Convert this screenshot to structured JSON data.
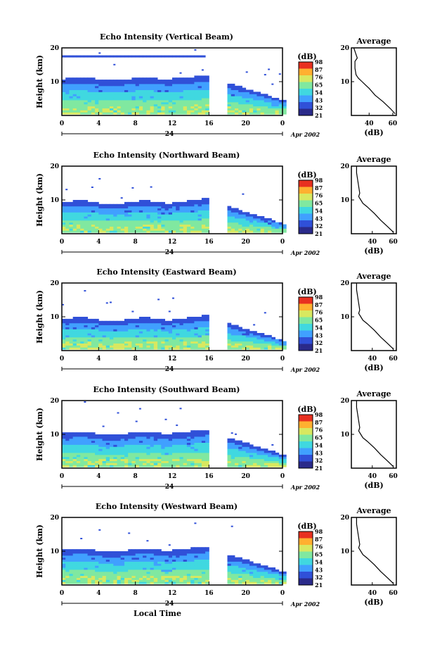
{
  "chart_data": [
    {
      "type": "heatmap",
      "title": "Echo Intensity (Vertical Beam)",
      "ylabel": "Height (km)",
      "xlabel": "",
      "x_ticks": [
        "0",
        "4",
        "8",
        "12",
        "16",
        "20",
        "0"
      ],
      "y_ticks": [
        "20",
        "10"
      ],
      "xlim": [
        0,
        24
      ],
      "ylim": [
        0,
        20
      ],
      "day_label": "24",
      "date_label": "Apr 2002",
      "colorbar": {
        "title": "(dB)",
        "levels": [
          "98",
          "87",
          "76",
          "65",
          "54",
          "43",
          "32",
          "21"
        ]
      },
      "data_gap_hours": [
        15.7,
        17.7
      ],
      "echo_top_km": 10.5,
      "thin_layer_km": 17.5,
      "average": {
        "title": "Average",
        "xlabel": "(dB)",
        "x_ticks": [
          "40",
          "60"
        ],
        "y_ticks": [
          "20",
          "10"
        ],
        "xlim": [
          25,
          63
        ],
        "profile_km": [
          0.5,
          2,
          4,
          6,
          8,
          9,
          10,
          11,
          12,
          14,
          16,
          17,
          18,
          19,
          20
        ],
        "profile_db": [
          62,
          58,
          52,
          45,
          40,
          37,
          34,
          31,
          29,
          28,
          28,
          30,
          29,
          28,
          27
        ]
      }
    },
    {
      "type": "heatmap",
      "title": "Echo Intensity (Northward Beam)",
      "ylabel": "Height (km)",
      "xlabel": "",
      "x_ticks": [
        "0",
        "4",
        "8",
        "12",
        "16",
        "20",
        "0"
      ],
      "y_ticks": [
        "20",
        "10"
      ],
      "xlim": [
        0,
        24
      ],
      "ylim": [
        0,
        20
      ],
      "day_label": "24",
      "date_label": "Apr 2002",
      "colorbar": {
        "title": "(dB)",
        "levels": [
          "98",
          "87",
          "76",
          "65",
          "54",
          "43",
          "32",
          "21"
        ]
      },
      "data_gap_hours": [
        15.7,
        17.7
      ],
      "echo_top_km": 9.0,
      "thin_layer_km": 0,
      "average": {
        "title": "Average",
        "xlabel": "(dB)",
        "x_ticks": [
          "40",
          "60"
        ],
        "y_ticks": [
          "20",
          "10"
        ],
        "xlim": [
          20,
          63
        ],
        "profile_km": [
          0.5,
          2,
          4,
          6,
          8,
          9,
          10,
          11,
          12,
          14,
          16,
          18,
          20
        ],
        "profile_db": [
          60,
          55,
          48,
          42,
          35,
          31,
          29,
          27,
          28,
          27,
          26,
          25,
          25
        ]
      }
    },
    {
      "type": "heatmap",
      "title": "Echo Intensity (Eastward Beam)",
      "ylabel": "Height (km)",
      "xlabel": "",
      "x_ticks": [
        "0",
        "4",
        "8",
        "12",
        "16",
        "20",
        "0"
      ],
      "y_ticks": [
        "20",
        "10"
      ],
      "xlim": [
        0,
        24
      ],
      "ylim": [
        0,
        20
      ],
      "day_label": "24",
      "date_label": "Apr 2002",
      "colorbar": {
        "title": "(dB)",
        "levels": [
          "98",
          "87",
          "76",
          "65",
          "54",
          "43",
          "32",
          "21"
        ]
      },
      "data_gap_hours": [
        15.7,
        17.7
      ],
      "echo_top_km": 9.0,
      "thin_layer_km": 0,
      "average": {
        "title": "Average",
        "xlabel": "(dB)",
        "x_ticks": [
          "40",
          "60"
        ],
        "y_ticks": [
          "20",
          "10"
        ],
        "xlim": [
          20,
          63
        ],
        "profile_km": [
          0.5,
          2,
          4,
          6,
          8,
          9,
          10,
          11,
          12,
          14,
          16,
          18,
          20
        ],
        "profile_db": [
          60,
          55,
          48,
          42,
          35,
          31,
          29,
          27,
          28,
          27,
          26,
          25,
          25
        ]
      }
    },
    {
      "type": "heatmap",
      "title": "Echo Intensity (Southward Beam)",
      "ylabel": "Height (km)",
      "xlabel": "",
      "x_ticks": [
        "0",
        "4",
        "8",
        "12",
        "16",
        "20",
        "0"
      ],
      "y_ticks": [
        "20",
        "10"
      ],
      "xlim": [
        0,
        24
      ],
      "ylim": [
        0,
        20
      ],
      "day_label": "24",
      "date_label": "Apr 2002",
      "colorbar": {
        "title": "(dB)",
        "levels": [
          "98",
          "87",
          "76",
          "65",
          "54",
          "43",
          "32",
          "21"
        ]
      },
      "data_gap_hours": [
        15.7,
        17.7
      ],
      "echo_top_km": 10.0,
      "thin_layer_km": 0,
      "average": {
        "title": "Average",
        "xlabel": "(dB)",
        "x_ticks": [
          "40",
          "60"
        ],
        "y_ticks": [
          "20",
          "10"
        ],
        "xlim": [
          20,
          63
        ],
        "profile_km": [
          0.5,
          2,
          4,
          6,
          8,
          9,
          10,
          11,
          12,
          14,
          16,
          18,
          20
        ],
        "profile_db": [
          60,
          55,
          48,
          42,
          35,
          31,
          29,
          27,
          28,
          27,
          26,
          25,
          25
        ]
      }
    },
    {
      "type": "heatmap",
      "title": "Echo Intensity (Westward Beam)",
      "ylabel": "Height (km)",
      "xlabel": "Local Time",
      "x_ticks": [
        "0",
        "4",
        "8",
        "12",
        "16",
        "20",
        "0"
      ],
      "y_ticks": [
        "20",
        "10"
      ],
      "xlim": [
        0,
        24
      ],
      "ylim": [
        0,
        20
      ],
      "day_label": "24",
      "date_label": "Apr 2002",
      "colorbar": {
        "title": "(dB)",
        "levels": [
          "98",
          "87",
          "76",
          "65",
          "54",
          "43",
          "32",
          "21"
        ]
      },
      "data_gap_hours": [
        15.7,
        17.7
      ],
      "echo_top_km": 10.0,
      "thin_layer_km": 0,
      "average": {
        "title": "Average",
        "xlabel": "(dB)",
        "x_ticks": [
          "40",
          "60"
        ],
        "y_ticks": [
          "20",
          "10"
        ],
        "xlim": [
          20,
          63
        ],
        "profile_km": [
          0.5,
          2,
          4,
          6,
          8,
          9,
          10,
          11,
          12,
          14,
          16,
          18,
          20
        ],
        "profile_db": [
          60,
          55,
          48,
          42,
          35,
          31,
          29,
          27,
          28,
          27,
          26,
          25,
          25
        ]
      }
    }
  ],
  "colorscale": [
    "#2a2a8a",
    "#3050d8",
    "#40a0ff",
    "#40d8e0",
    "#80e8a0",
    "#d8e860",
    "#ffb030",
    "#e83020"
  ]
}
